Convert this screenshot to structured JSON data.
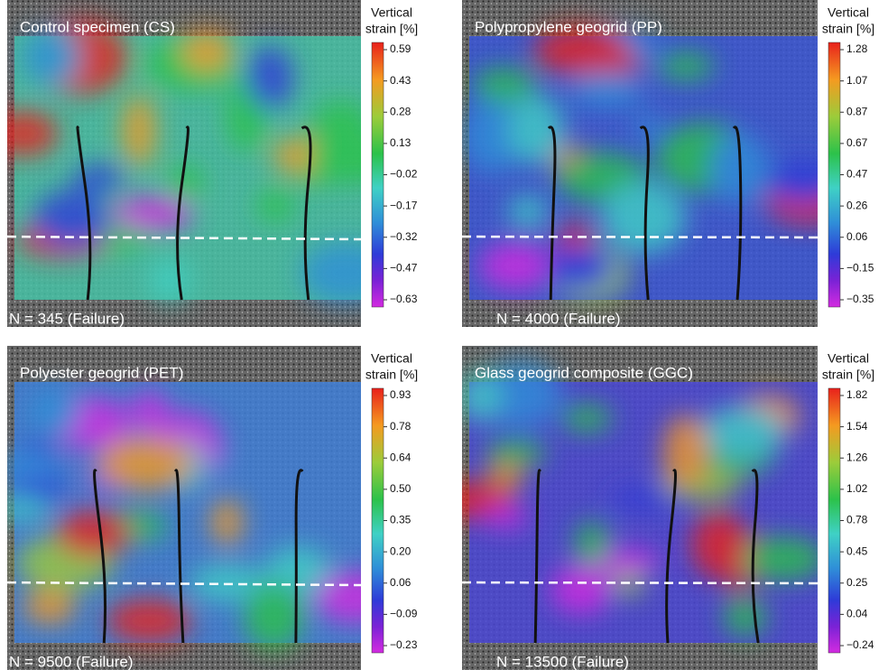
{
  "panels": [
    {
      "title": "Control specimen (CS)",
      "cycles": "N = 345 (Failure)",
      "colorbar_title": [
        "Vertical",
        "strain [%]"
      ],
      "ticks": [
        "0.59",
        "0.43",
        "0.28",
        "0.13",
        "−0.02",
        "−0.17",
        "−0.32",
        "−0.47",
        "−0.63"
      ]
    },
    {
      "title": "Polypropylene geogrid  (PP)",
      "cycles": "N = 4000 (Failure)",
      "colorbar_title": [
        "Vertical",
        "strain [%]"
      ],
      "ticks": [
        "1.28",
        "1.07",
        "0.87",
        "0.67",
        "0.47",
        "0.26",
        "0.06",
        "−0.15",
        "−0.35"
      ]
    },
    {
      "title": "Polyester geogrid (PET)",
      "cycles": "N = 9500 (Failure)",
      "colorbar_title": [
        "Vertical",
        "strain [%]"
      ],
      "ticks": [
        "0.93",
        "0.78",
        "0.64",
        "0.50",
        "0.35",
        "0.20",
        "0.06",
        "−0.09",
        "−0.23"
      ]
    },
    {
      "title": "Glass geogrid composite (GGC)",
      "cycles": "N = 13500 (Failure)",
      "colorbar_title": [
        "Vertical",
        "strain [%]"
      ],
      "ticks": [
        "1.82",
        "1.54",
        "1.26",
        "1.02",
        "0.78",
        "0.45",
        "0.25",
        "0.04",
        "−0.24"
      ]
    }
  ]
}
